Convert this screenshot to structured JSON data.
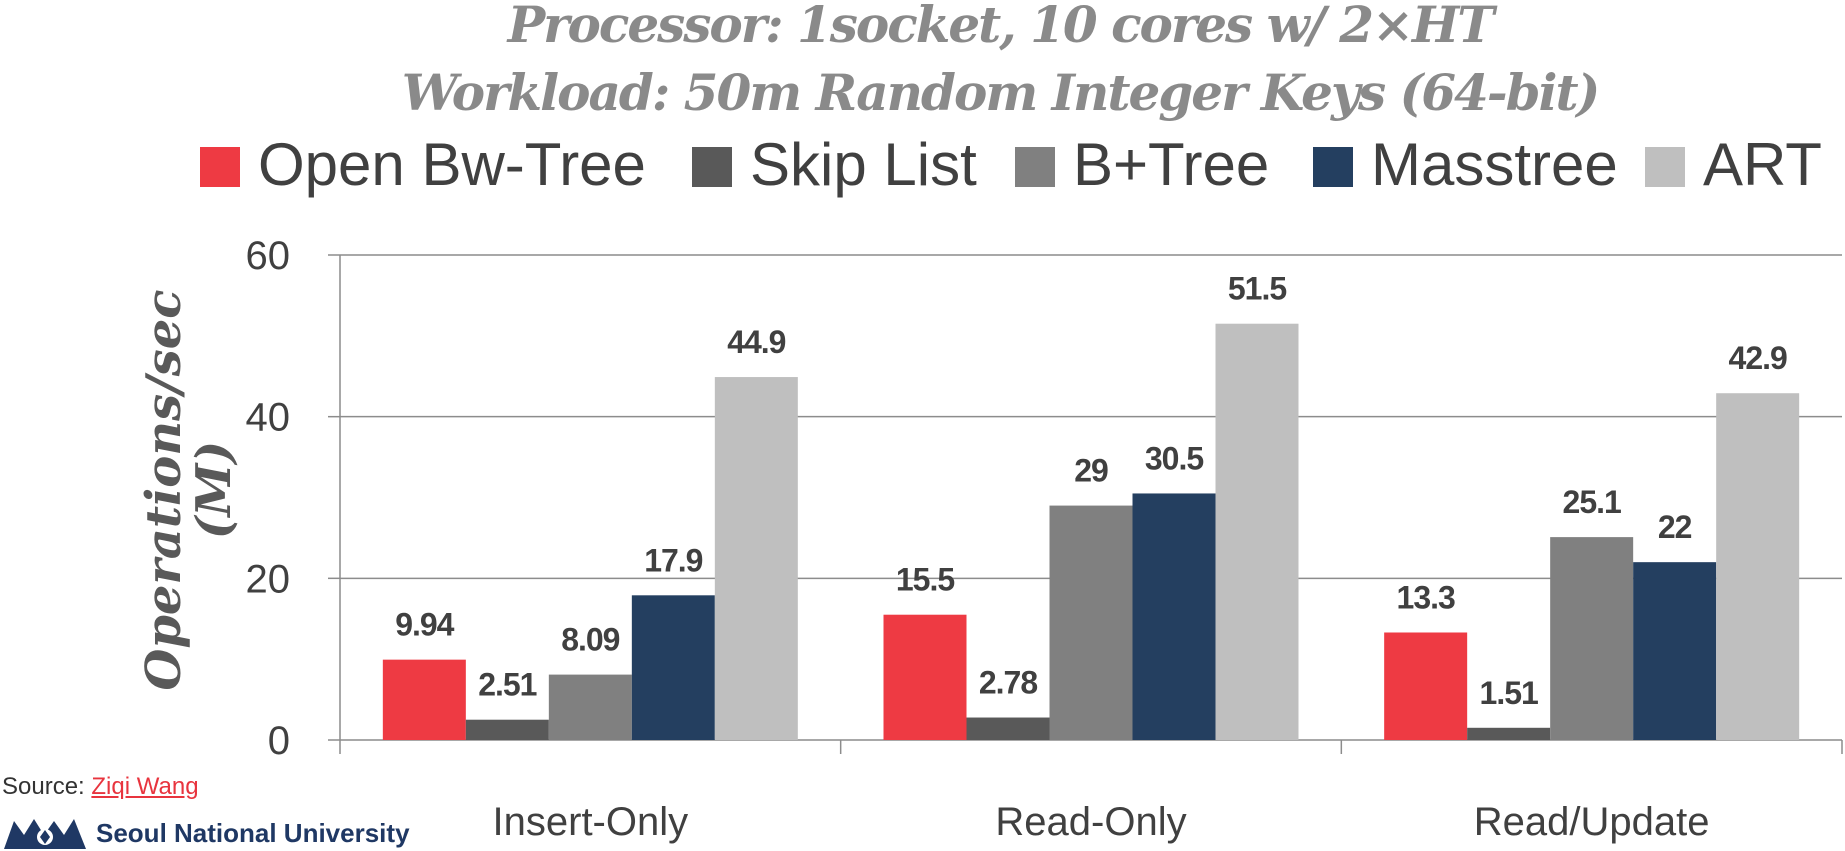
{
  "chart_data": {
    "type": "bar",
    "title": [
      "Processor: 1socket, 10 cores w/ 2×HT",
      "Workload: 50m Random Integer Keys (64-bit)"
    ],
    "ylabel": [
      "Operations/sec",
      "(M)"
    ],
    "xlabel": "",
    "categories": [
      "Insert-Only",
      "Read-Only",
      "Read/Update"
    ],
    "ylim": [
      0,
      60
    ],
    "yticks": [
      0,
      20,
      40,
      60
    ],
    "grid": true,
    "legend_position": "top",
    "series": [
      {
        "name": "Open Bw-Tree",
        "color": "#ee3a43",
        "values": [
          9.94,
          15.5,
          13.3
        ],
        "labels": [
          "9.94",
          "15.5",
          "13.3"
        ]
      },
      {
        "name": "Skip List",
        "color": "#595959",
        "values": [
          2.51,
          2.78,
          1.51
        ],
        "labels": [
          "2.51",
          "2.78",
          "1.51"
        ]
      },
      {
        "name": "B+Tree",
        "color": "#808080",
        "values": [
          8.09,
          29,
          25.1
        ],
        "labels": [
          "8.09",
          "29",
          "25.1"
        ]
      },
      {
        "name": "Masstree",
        "color": "#243f60",
        "values": [
          17.9,
          30.5,
          22
        ],
        "labels": [
          "17.9",
          "30.5",
          "22"
        ]
      },
      {
        "name": "ART",
        "color": "#bfbfbf",
        "values": [
          44.9,
          51.5,
          42.9
        ],
        "labels": [
          "44.9",
          "51.5",
          "42.9"
        ]
      }
    ]
  },
  "source": {
    "prefix": "Source: ",
    "author": "Ziqi Wang"
  },
  "logo": {
    "text": "Seoul National University"
  }
}
